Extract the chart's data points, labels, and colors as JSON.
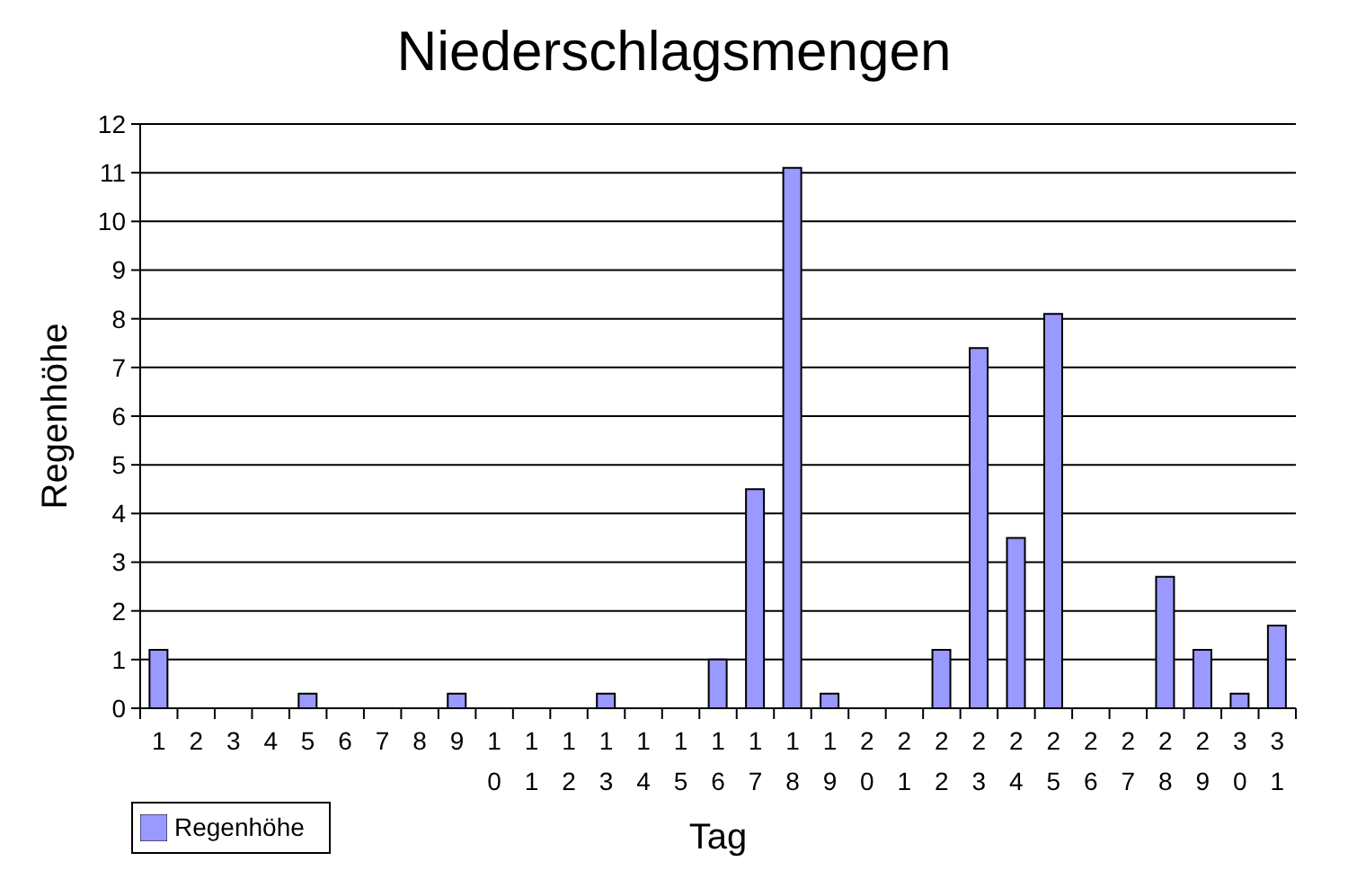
{
  "chart_data": {
    "type": "bar",
    "title": "Niederschlagsmengen",
    "xlabel": "Tag",
    "ylabel": "Regenhöhe",
    "categories": [
      "1",
      "2",
      "3",
      "4",
      "5",
      "6",
      "7",
      "8",
      "9",
      "10",
      "11",
      "12",
      "13",
      "14",
      "15",
      "16",
      "17",
      "18",
      "19",
      "20",
      "21",
      "22",
      "23",
      "24",
      "25",
      "26",
      "27",
      "28",
      "29",
      "30",
      "31"
    ],
    "series": [
      {
        "name": "Regenhöhe",
        "color": "#9999ff",
        "values": [
          1.2,
          0,
          0,
          0,
          0.3,
          0,
          0,
          0,
          0.3,
          0,
          0,
          0,
          0.3,
          0,
          0,
          1.0,
          4.5,
          11.1,
          0.3,
          0,
          0,
          1.2,
          7.4,
          3.5,
          8.1,
          0,
          0,
          2.7,
          1.2,
          0.3,
          1.7
        ]
      }
    ],
    "ylim": [
      0,
      12
    ],
    "yticks": [
      0,
      1,
      2,
      3,
      4,
      5,
      6,
      7,
      8,
      9,
      10,
      11,
      12
    ],
    "grid": "y",
    "legend": "bottom left"
  }
}
